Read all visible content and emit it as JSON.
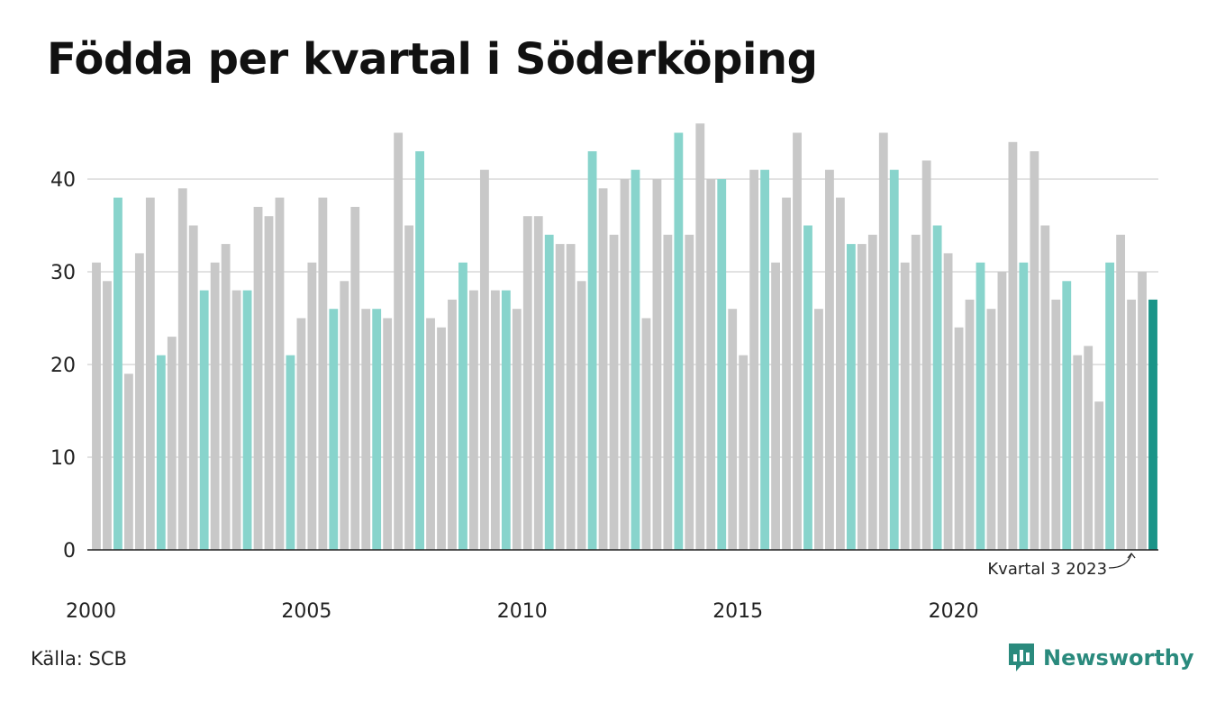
{
  "title": "Födda per kvartal i Söderköping",
  "source": "Källa: SCB",
  "brand": "Newsworthy",
  "colors": {
    "default": "#c8c8c8",
    "q3": "#88d4cc",
    "highlight": "#1a9488",
    "grid": "#e2e2e2",
    "axis": "#222222",
    "brand": "#2a8a7d"
  },
  "chart_data": {
    "type": "bar",
    "title": "Födda per kvartal i Söderköping",
    "xlabel": "",
    "ylabel": "",
    "ylim": [
      0,
      46
    ],
    "yticks": [
      0,
      10,
      20,
      30,
      40
    ],
    "xtick_labels": [
      "2000",
      "2005",
      "2010",
      "2015",
      "2020"
    ],
    "grid": true,
    "start_year": 2000,
    "values": [
      31,
      29,
      38,
      19,
      32,
      38,
      21,
      23,
      39,
      35,
      28,
      31,
      33,
      28,
      28,
      37,
      36,
      38,
      21,
      25,
      31,
      38,
      26,
      29,
      37,
      26,
      26,
      25,
      45,
      35,
      43,
      25,
      24,
      27,
      31,
      28,
      41,
      28,
      28,
      26,
      36,
      36,
      34,
      33,
      33,
      29,
      43,
      39,
      34,
      40,
      41,
      25,
      40,
      34,
      45,
      34,
      46,
      40,
      40,
      26,
      21,
      41,
      41,
      31,
      38,
      45,
      35,
      26,
      41,
      38,
      33,
      33,
      34,
      45,
      41,
      31,
      34,
      42,
      35,
      32,
      24,
      27,
      31,
      26,
      30,
      44,
      31,
      43,
      35,
      27,
      29,
      21,
      22,
      16,
      31,
      34,
      27,
      30,
      27
    ],
    "annotation": "Kvartal 3 2023"
  }
}
